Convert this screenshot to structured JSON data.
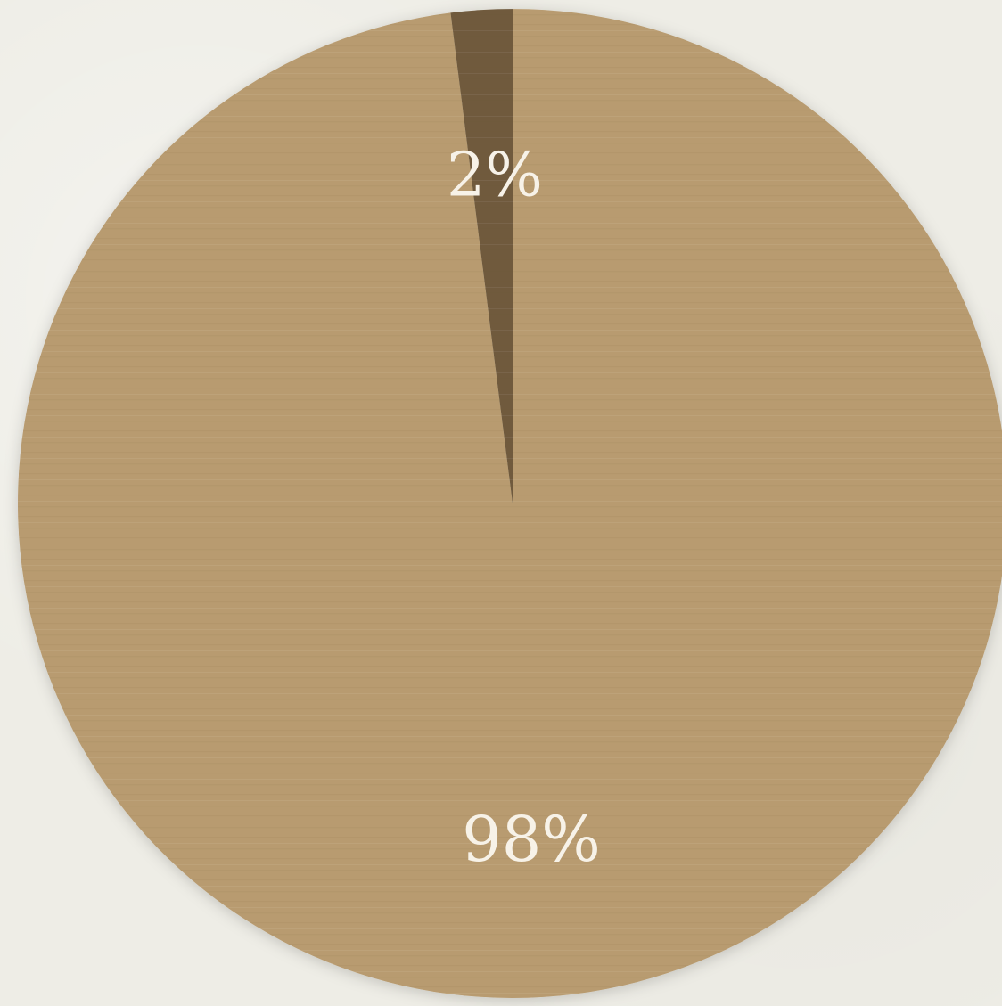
{
  "chart_data": {
    "type": "pie",
    "slices": [
      {
        "label": "2%",
        "value": 2,
        "color": "#6f5a3c"
      },
      {
        "label": "98%",
        "value": 98,
        "color": "#b89b70"
      }
    ],
    "start_angle_deg": -2,
    "direction": "counterclockwise-from-top-for-small-slice",
    "colors": {
      "background": "#eeede6",
      "main_slice": "#b89b70",
      "small_slice": "#6f5a3c",
      "label_text": "#f7f2e8"
    }
  }
}
